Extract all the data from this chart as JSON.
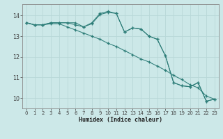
{
  "xlabel": "Humidex (Indice chaleur)",
  "bg_color": "#cce8e8",
  "line_color": "#2d7d78",
  "grid_color": "#b8d8d8",
  "xlim": [
    -0.5,
    23.5
  ],
  "ylim": [
    9.5,
    14.55
  ],
  "xticks": [
    0,
    1,
    2,
    3,
    4,
    5,
    6,
    7,
    8,
    9,
    10,
    11,
    12,
    13,
    14,
    15,
    16,
    17,
    18,
    19,
    20,
    21,
    22,
    23
  ],
  "yticks": [
    10,
    11,
    12,
    13,
    14
  ],
  "s1": [
    13.65,
    13.55,
    13.55,
    13.65,
    13.65,
    13.65,
    13.55,
    13.45,
    13.6,
    14.05,
    14.15,
    14.1,
    13.2,
    13.4,
    13.35,
    13.0,
    12.85,
    12.05,
    10.75,
    10.6,
    10.55,
    10.75,
    9.85,
    9.95
  ],
  "s2": [
    13.65,
    13.55,
    13.55,
    13.65,
    13.65,
    13.65,
    13.65,
    13.45,
    13.65,
    14.1,
    14.2,
    14.1,
    13.2,
    13.4,
    13.35,
    13.0,
    12.85,
    12.05,
    10.75,
    10.6,
    10.55,
    10.75,
    9.85,
    9.95
  ],
  "s3": [
    13.65,
    13.55,
    13.55,
    13.6,
    13.6,
    13.45,
    13.3,
    13.15,
    13.0,
    12.85,
    12.65,
    12.5,
    12.3,
    12.1,
    11.9,
    11.75,
    11.55,
    11.35,
    11.1,
    10.9,
    10.65,
    10.5,
    10.1,
    9.95
  ]
}
